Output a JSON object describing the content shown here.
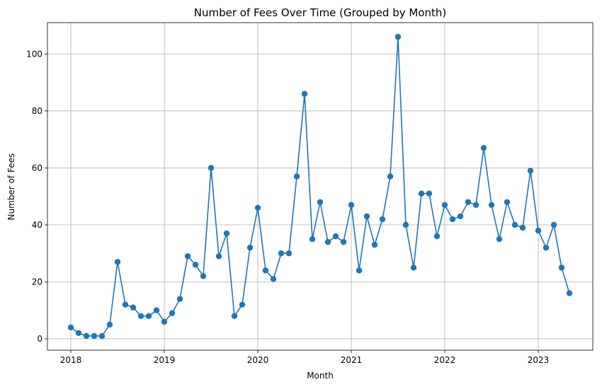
{
  "chart_data": {
    "type": "line",
    "title": "Number of Fees Over Time (Grouped by Month)",
    "xlabel": "Month",
    "ylabel": "Number of Fees",
    "x_ticks": [
      "2018",
      "2019",
      "2020",
      "2021",
      "2022",
      "2023"
    ],
    "y_ticks": [
      0,
      20,
      40,
      60,
      80,
      100
    ],
    "ylim": [
      -4,
      111
    ],
    "xlim": [
      "2017-10",
      "2023-08"
    ],
    "grid": true,
    "marker": "circle",
    "color": "#1f77b4",
    "series": [
      {
        "x": [
          "2018-01",
          "2018-02",
          "2018-03",
          "2018-04",
          "2018-05",
          "2018-06",
          "2018-07",
          "2018-08",
          "2018-09",
          "2018-10",
          "2018-11",
          "2018-12",
          "2019-01",
          "2019-02",
          "2019-03",
          "2019-04",
          "2019-05",
          "2019-06",
          "2019-07",
          "2019-08",
          "2019-09",
          "2019-10",
          "2019-11",
          "2019-12",
          "2020-01",
          "2020-02",
          "2020-03",
          "2020-04",
          "2020-05",
          "2020-06",
          "2020-07",
          "2020-08",
          "2020-09",
          "2020-10",
          "2020-11",
          "2020-12",
          "2021-01",
          "2021-02",
          "2021-03",
          "2021-04",
          "2021-05",
          "2021-06",
          "2021-07",
          "2021-08",
          "2021-09",
          "2021-10",
          "2021-11",
          "2021-12",
          "2022-01",
          "2022-02",
          "2022-03",
          "2022-04",
          "2022-05",
          "2022-06",
          "2022-07",
          "2022-08",
          "2022-09",
          "2022-10",
          "2022-11",
          "2022-12",
          "2023-01",
          "2023-02",
          "2023-03",
          "2023-04",
          "2023-05"
        ],
        "values": [
          4,
          2,
          1,
          1,
          1,
          5,
          27,
          12,
          11,
          8,
          8,
          10,
          6,
          9,
          14,
          29,
          26,
          22,
          60,
          29,
          37,
          8,
          12,
          32,
          46,
          24,
          21,
          30,
          30,
          57,
          86,
          35,
          48,
          34,
          36,
          34,
          47,
          24,
          43,
          33,
          42,
          57,
          106,
          40,
          25,
          51,
          51,
          36,
          47,
          42,
          43,
          48,
          47,
          67,
          47,
          35,
          48,
          40,
          39,
          59,
          38,
          32,
          40,
          25,
          16
        ]
      }
    ]
  }
}
